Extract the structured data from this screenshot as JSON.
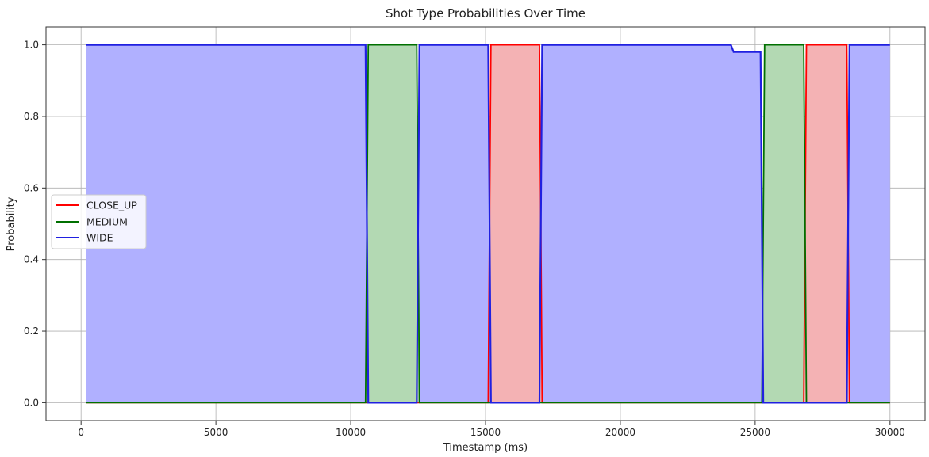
{
  "chart_data": {
    "type": "area",
    "title": "Shot Type Probabilities Over Time",
    "xlabel": "Timestamp (ms)",
    "ylabel": "Probability",
    "xlim": [
      -1300,
      31300
    ],
    "ylim": [
      -0.05,
      1.05
    ],
    "xticks": [
      0,
      5000,
      10000,
      15000,
      20000,
      25000,
      30000
    ],
    "yticks": [
      0.0,
      0.2,
      0.4,
      0.6,
      0.8,
      1.0
    ],
    "xtick_labels": [
      "0",
      "5000",
      "10000",
      "15000",
      "20000",
      "25000",
      "30000"
    ],
    "ytick_labels": [
      "0.0",
      "0.2",
      "0.4",
      "0.6",
      "0.8",
      "1.0"
    ],
    "grid": true,
    "legend_position": "center-left",
    "series": [
      {
        "name": "CLOSE_UP",
        "color": "#ff0000",
        "fill_color": "#f4b2b4",
        "x": [
          200,
          15100,
          15200,
          17000,
          17100,
          26800,
          26900,
          28400,
          28500,
          30000
        ],
        "values": [
          0,
          0,
          1,
          1,
          0,
          0,
          1,
          1,
          0,
          0
        ]
      },
      {
        "name": "MEDIUM",
        "color": "#007000",
        "fill_color": "#b3d9b3",
        "x": [
          200,
          10550,
          10650,
          12450,
          12550,
          25250,
          25350,
          26800,
          26900,
          30000
        ],
        "values": [
          0,
          0,
          1,
          1,
          0,
          0,
          1,
          1,
          0,
          0
        ]
      },
      {
        "name": "WIDE",
        "color": "#2020e0",
        "fill_color": "#b0b0ff",
        "x": [
          200,
          10550,
          10650,
          12450,
          12550,
          15100,
          15200,
          17000,
          17100,
          24100,
          24200,
          25200,
          25300,
          28400,
          28500,
          30000
        ],
        "values": [
          1,
          1,
          0,
          0,
          1,
          1,
          0,
          0,
          1,
          1,
          0.98,
          0.98,
          0,
          0,
          1,
          1
        ]
      }
    ]
  }
}
